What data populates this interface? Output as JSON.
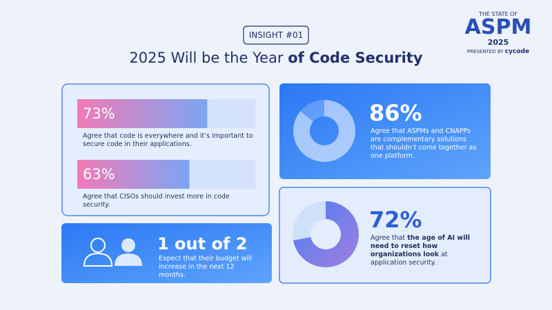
{
  "header": {
    "badge": "INSIGHT #01",
    "title_plain": "2025 Will be the Year",
    "title_bold": "of Code Security"
  },
  "logo": {
    "line1": "THE STATE OF",
    "name": "ASPM",
    "year": "2025",
    "presented_by": "PRESENTED BY",
    "brand": "cycode"
  },
  "stats": [
    {
      "value": 73,
      "value_label": "73%",
      "text": "Agree that code is everywhere and it’s important to secure code in their applications."
    },
    {
      "value": 63,
      "value_label": "63%",
      "text": "Agree that CISOs should invest more in code security."
    },
    {
      "value": 86,
      "value_label": "86%",
      "text": "Agree that ASPMs and CNAPPs are complementary solutions that shouldn’t come together as one platform."
    },
    {
      "value": 72,
      "value_label": "72%",
      "text_parts": [
        "Agree that ",
        "the age of AI will need to reset how organizations look",
        " at application security."
      ]
    }
  ],
  "ratio": {
    "label": "1 out of 2",
    "text": "Expect that their budget will increase in the next 12 months."
  }
}
